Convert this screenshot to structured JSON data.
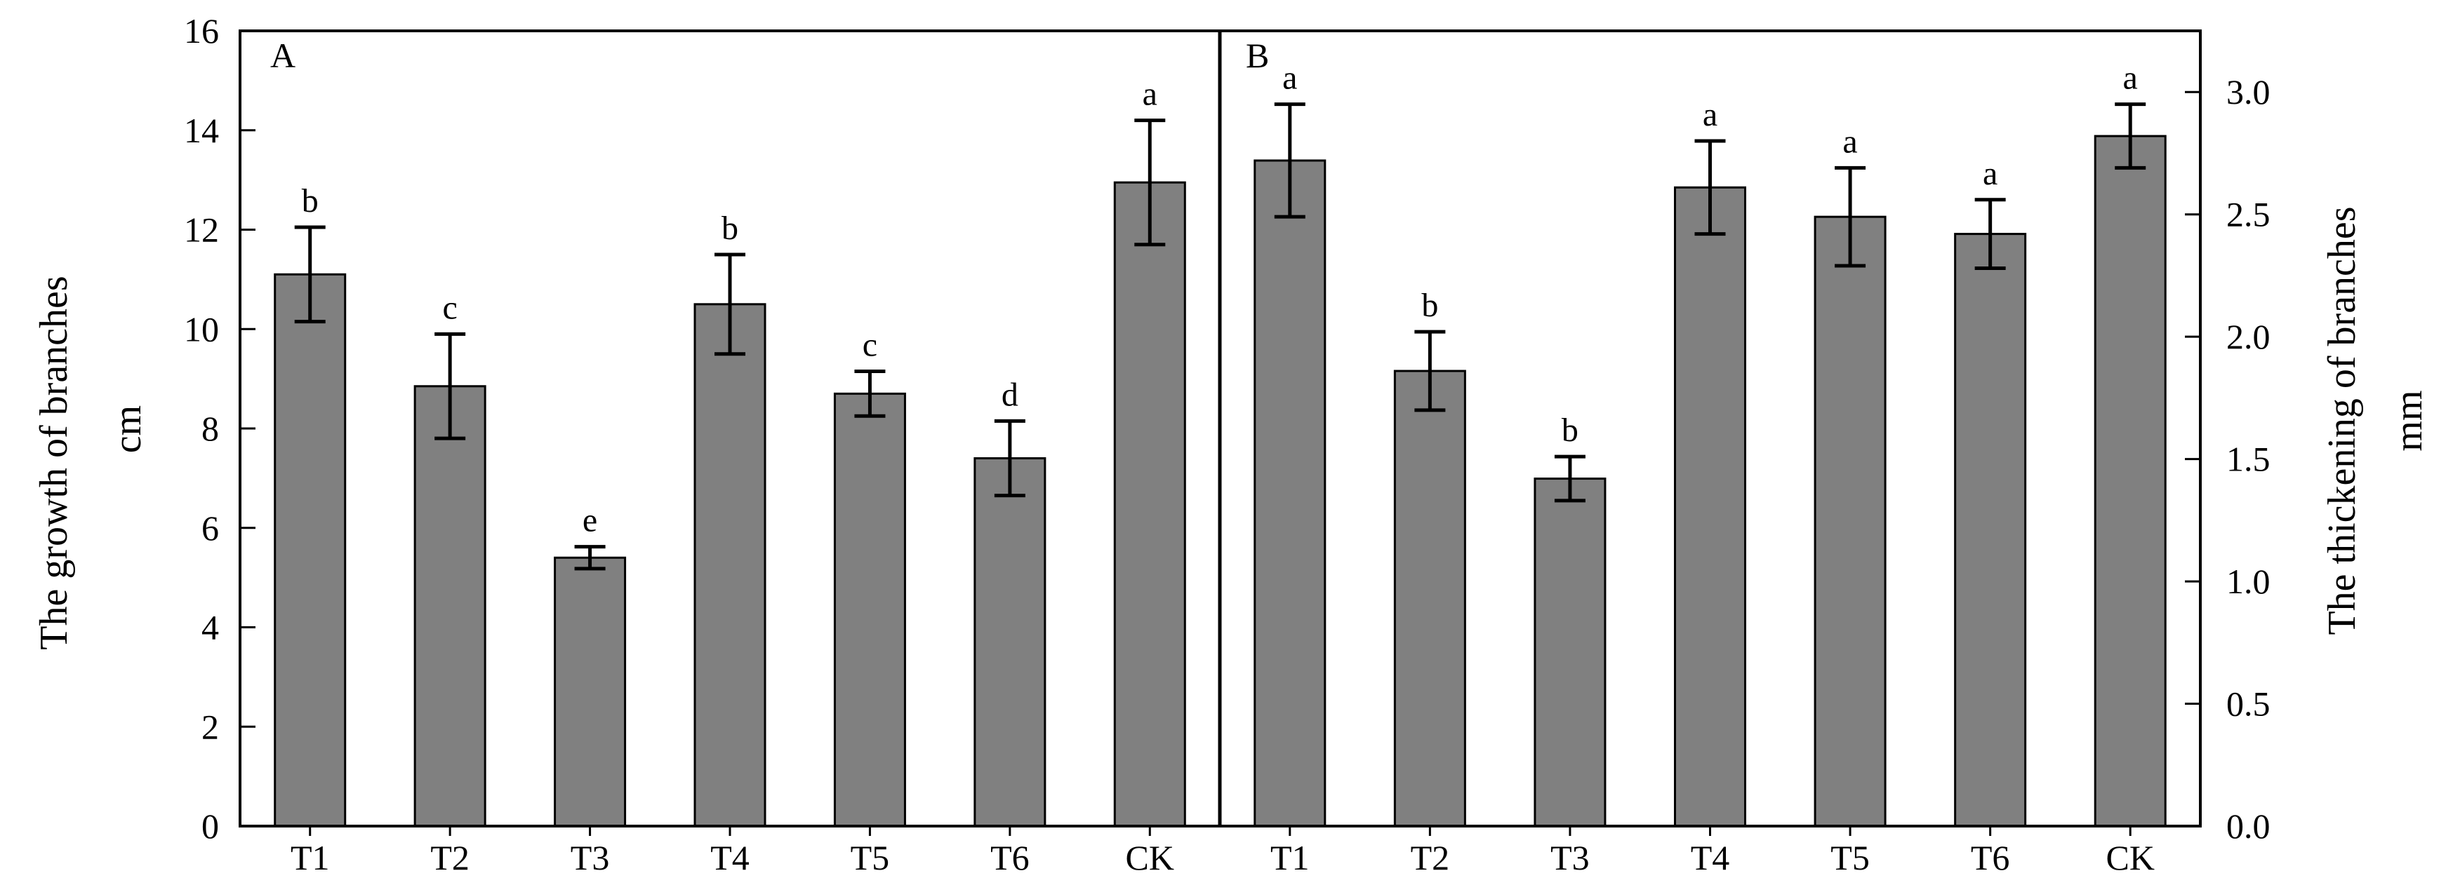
{
  "chart_data": [
    {
      "panel": "A",
      "type": "bar",
      "categories": [
        "T1",
        "T2",
        "T3",
        "T4",
        "T5",
        "T6",
        "CK"
      ],
      "values": [
        11.1,
        8.85,
        5.4,
        10.5,
        8.7,
        7.4,
        12.95
      ],
      "errors": [
        0.95,
        1.05,
        0.22,
        1.0,
        0.45,
        0.75,
        1.25
      ],
      "letters": [
        "b",
        "c",
        "e",
        "b",
        "c",
        "d",
        "a"
      ],
      "ylabel": "The growth of branches",
      "yunit": "cm",
      "ylim": [
        0,
        16
      ],
      "yticks": [
        "0",
        "2",
        "4",
        "6",
        "8",
        "10",
        "12",
        "14",
        "16"
      ],
      "axis_side": "left",
      "color": "#808080",
      "grid": false
    },
    {
      "panel": "B",
      "type": "bar",
      "categories": [
        "T1",
        "T2",
        "T3",
        "T4",
        "T5",
        "T6",
        "CK"
      ],
      "values": [
        2.72,
        1.86,
        1.42,
        2.61,
        2.49,
        2.42,
        2.82
      ],
      "errors": [
        0.23,
        0.16,
        0.09,
        0.19,
        0.2,
        0.14,
        0.13
      ],
      "letters": [
        "a",
        "b",
        "b",
        "a",
        "a",
        "a",
        "a"
      ],
      "ylabel": "The thickening of branches",
      "yunit": "mm",
      "ylim": [
        0,
        3.25
      ],
      "yticks": [
        "0.0",
        "0.5",
        "1.0",
        "1.5",
        "2.0",
        "2.5",
        "3.0"
      ],
      "axis_side": "right",
      "color": "#808080",
      "grid": false
    }
  ]
}
